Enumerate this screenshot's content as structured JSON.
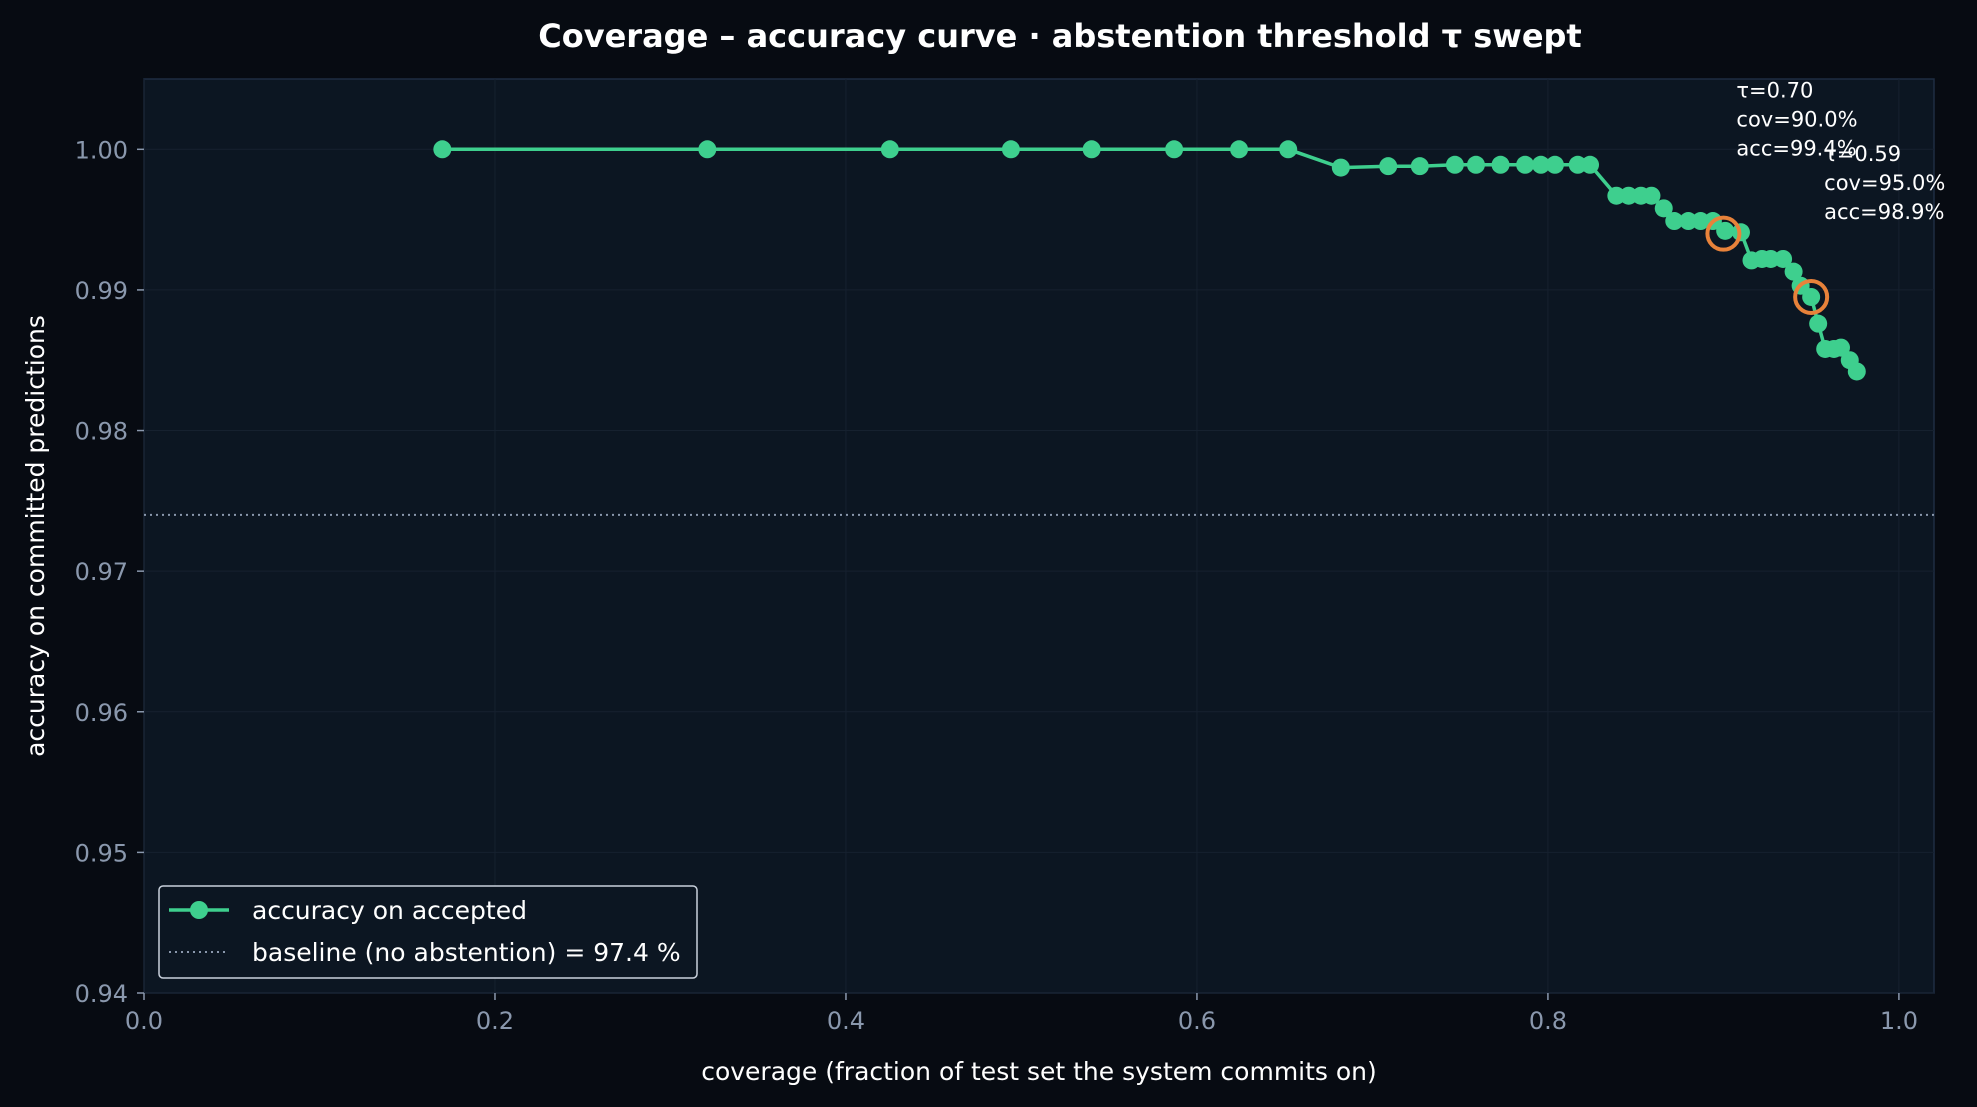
{
  "chart_data": {
    "type": "line",
    "title": "Coverage – accuracy curve · abstention threshold τ swept",
    "xlabel": "coverage  (fraction of test set the system commits on)",
    "ylabel": "accuracy on committed predictions",
    "xlim": [
      0.0,
      1.02
    ],
    "ylim": [
      0.94,
      1.005
    ],
    "xticks": [
      "0.0",
      "0.2",
      "0.4",
      "0.6",
      "0.8",
      "1.0"
    ],
    "yticks": [
      "0.94",
      "0.95",
      "0.96",
      "0.97",
      "0.98",
      "0.99",
      "1.00"
    ],
    "grid": true,
    "legend_position": "lower-left",
    "colors": {
      "series": "#3ecf8e",
      "highlight": "#e8823a",
      "baseline": "#8a98ad",
      "plot_bg": "#0c1622",
      "page_bg": "#070b12"
    },
    "series": [
      {
        "name": "accuracy on accepted",
        "x": [
          0.17,
          0.321,
          0.425,
          0.494,
          0.54,
          0.587,
          0.624,
          0.652,
          0.682,
          0.709,
          0.727,
          0.747,
          0.759,
          0.773,
          0.787,
          0.796,
          0.804,
          0.817,
          0.824,
          0.839,
          0.846,
          0.853,
          0.859,
          0.866,
          0.872,
          0.88,
          0.887,
          0.894,
          0.901,
          0.91,
          0.916,
          0.922,
          0.927,
          0.934,
          0.94,
          0.944,
          0.95,
          0.954,
          0.958,
          0.963,
          0.967,
          0.972,
          0.976
        ],
        "y": [
          1.0,
          1.0,
          1.0,
          1.0,
          1.0,
          1.0,
          1.0,
          1.0,
          0.9987,
          0.9988,
          0.9988,
          0.9989,
          0.9989,
          0.9989,
          0.9989,
          0.9989,
          0.9989,
          0.9989,
          0.9989,
          0.9967,
          0.9967,
          0.9967,
          0.9967,
          0.9958,
          0.9949,
          0.9949,
          0.9949,
          0.9949,
          0.9942,
          0.9941,
          0.9921,
          0.9922,
          0.9922,
          0.9922,
          0.9913,
          0.9903,
          0.9895,
          0.9876,
          0.9858,
          0.9858,
          0.9859,
          0.985,
          0.9842
        ]
      }
    ],
    "baseline": {
      "label": "baseline (no abstention) = 97.4 %",
      "y": 0.974
    },
    "highlights": [
      {
        "tau": "τ=0.70",
        "cov": "cov=90.0%",
        "acc": "acc=99.4%",
        "x": 0.9,
        "y": 0.994
      },
      {
        "tau": "τ=0.59",
        "cov": "cov=95.0%",
        "acc": "acc=98.9%",
        "x": 0.95,
        "y": 0.9895
      }
    ]
  }
}
